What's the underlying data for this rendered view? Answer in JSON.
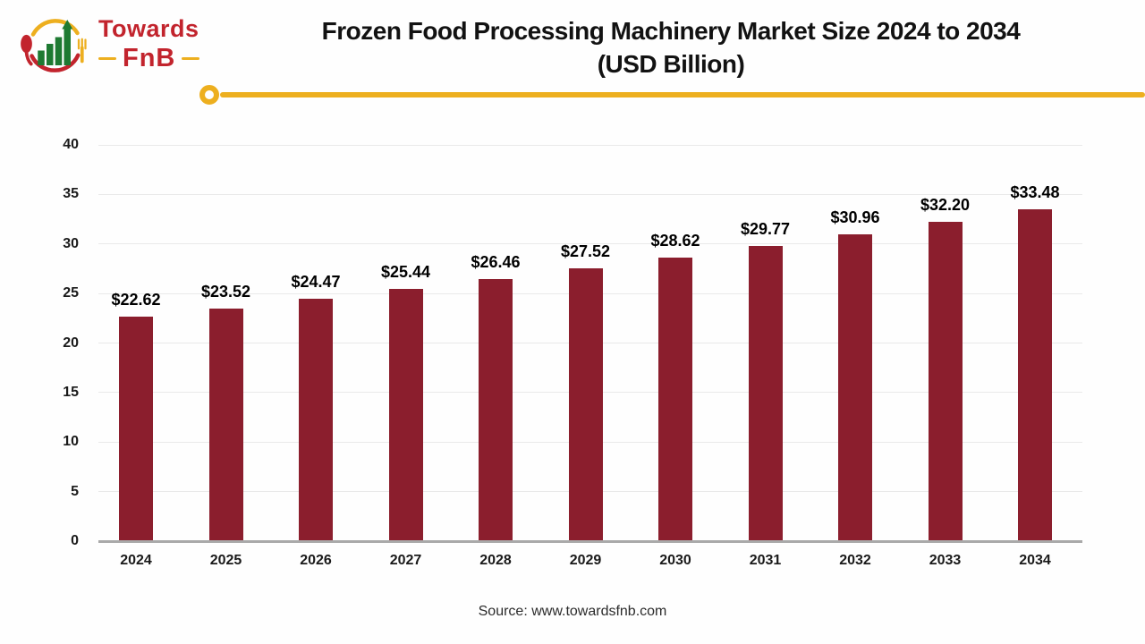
{
  "brand": {
    "name_line1": "Towards",
    "name_line2": "FnB",
    "accent_red": "#c2242d",
    "accent_yellow": "#edaf1f",
    "accent_green": "#1e7a32"
  },
  "header": {
    "title_line1": "Frozen Food Processing Machinery Market Size 2024 to 2034",
    "title_line2": "(USD Billion)"
  },
  "footer": {
    "source": "Source: www.towardsfnb.com"
  },
  "chart_data": {
    "type": "bar",
    "title": "Frozen Food Processing Machinery Market Size 2024 to 2034 (USD Billion)",
    "categories": [
      "2024",
      "2025",
      "2026",
      "2027",
      "2028",
      "2029",
      "2030",
      "2031",
      "2032",
      "2033",
      "2034"
    ],
    "values": [
      22.62,
      23.52,
      24.47,
      25.44,
      26.46,
      27.52,
      28.62,
      29.77,
      30.96,
      32.2,
      33.48
    ],
    "data_labels": [
      "$22.62",
      "$23.52",
      "$24.47",
      "$25.44",
      "$26.46",
      "$27.52",
      "$28.62",
      "$29.77",
      "$30.96",
      "$32.20",
      "$33.48"
    ],
    "xlabel": "",
    "ylabel": "",
    "ylim": [
      0,
      40
    ],
    "yticks": [
      0,
      5,
      10,
      15,
      20,
      25,
      30,
      35,
      40
    ],
    "bar_color": "#8b1e2d",
    "grid": true,
    "legend": false
  }
}
